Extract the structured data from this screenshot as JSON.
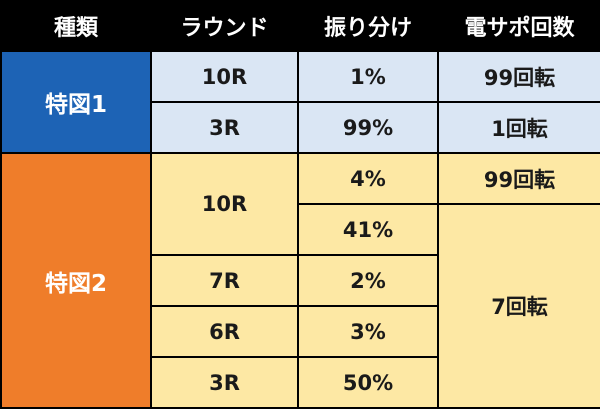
{
  "header": {
    "col1": "種類",
    "col2": "ラウンド",
    "col3": "振り分け",
    "col4": "電サポ回数"
  },
  "toku1": {
    "label": "特図1",
    "rows": [
      {
        "round": "10R",
        "share": "1%",
        "densapo": "99回転"
      },
      {
        "round": "3R",
        "share": "99%",
        "densapo": "1回転"
      }
    ]
  },
  "toku2": {
    "label": "特図2",
    "round_10r": "10R",
    "share_4": "4%",
    "densapo_99": "99回転",
    "share_41": "41%",
    "round_7r": "7R",
    "share_2": "2%",
    "densapo_7": "7回転",
    "round_6r": "6R",
    "share_3": "3%",
    "round_3r": "3R",
    "share_50": "50%"
  },
  "colors": {
    "header_bg": "#000000",
    "toku1_label_bg": "#1d63b5",
    "toku1_cell_bg": "#dae6f4",
    "toku2_label_bg": "#ef7d2a",
    "toku2_cell_bg": "#fde8a4"
  }
}
